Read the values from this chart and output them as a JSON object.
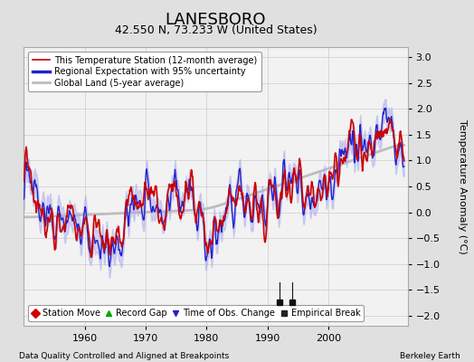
{
  "title": "LANESBORO",
  "subtitle": "42.550 N, 73.233 W (United States)",
  "ylabel": "Temperature Anomaly (°C)",
  "xlabel_left": "Data Quality Controlled and Aligned at Breakpoints",
  "xlabel_right": "Berkeley Earth",
  "ylim": [
    -2.2,
    3.2
  ],
  "xlim": [
    1950,
    2013
  ],
  "yticks": [
    -2,
    -1.5,
    -1,
    -0.5,
    0,
    0.5,
    1,
    1.5,
    2,
    2.5,
    3
  ],
  "xticks": [
    1960,
    1970,
    1980,
    1990,
    2000
  ],
  "bg_color": "#e0e0e0",
  "plot_bg_color": "#f2f2f2",
  "empirical_breaks": [
    1992.0,
    1994.0
  ],
  "line_colors": {
    "station": "#cc0000",
    "regional": "#2222cc",
    "global": "#bbbbbb",
    "band": "#aaaaee"
  },
  "legend_items": [
    {
      "label": "This Temperature Station (12-month average)",
      "color": "#cc0000",
      "lw": 1.2
    },
    {
      "label": "Regional Expectation with 95% uncertainty",
      "color": "#2222cc",
      "lw": 1.0
    },
    {
      "label": "Global Land (5-year average)",
      "color": "#bbbbbb",
      "lw": 2.0
    }
  ],
  "marker_items": [
    {
      "label": "Station Move",
      "color": "#cc0000",
      "marker": "D"
    },
    {
      "label": "Record Gap",
      "color": "#00aa00",
      "marker": "^"
    },
    {
      "label": "Time of Obs. Change",
      "color": "#2222cc",
      "marker": "v"
    },
    {
      "label": "Empirical Break",
      "color": "#222222",
      "marker": "s"
    }
  ]
}
